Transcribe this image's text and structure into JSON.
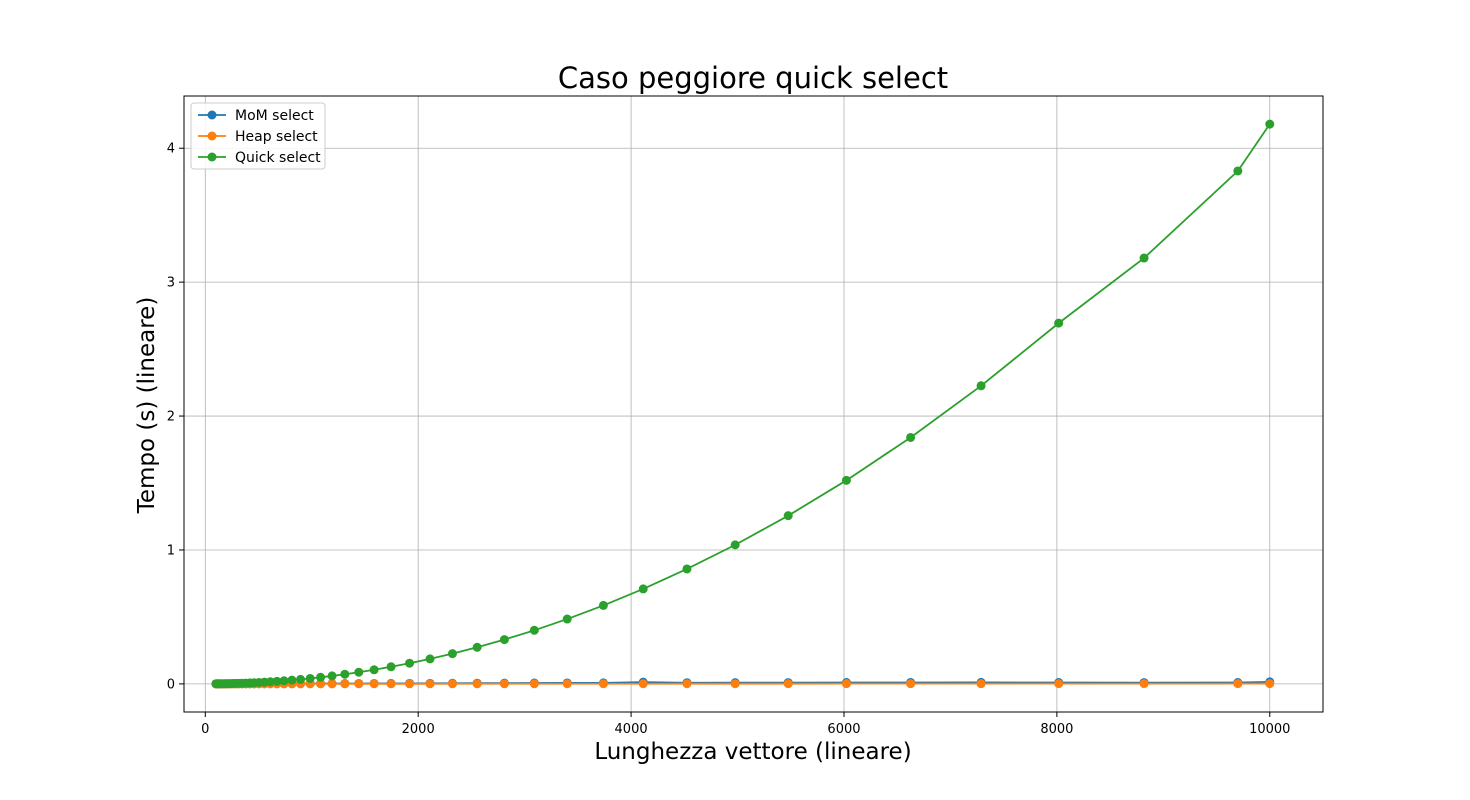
{
  "chart_data": {
    "type": "line",
    "title": "Caso peggiore quick select",
    "xlabel": "Lunghezza vettore (lineare)",
    "ylabel": "Tempo (s) (lineare)",
    "xlim": [
      -200,
      10500
    ],
    "ylim": [
      -0.21,
      4.39
    ],
    "x_ticks": [
      0,
      2000,
      4000,
      6000,
      8000,
      10000
    ],
    "x_tick_labels": [
      "0",
      "2000",
      "4000",
      "6000",
      "8000",
      "10000"
    ],
    "y_ticks": [
      0,
      1,
      2,
      3,
      4
    ],
    "y_tick_labels": [
      "0",
      "1",
      "2",
      "3",
      "4"
    ],
    "grid": true,
    "legend_position": "top-left",
    "x": [
      100,
      110,
      121,
      133,
      146,
      161,
      177,
      195,
      214,
      236,
      259,
      285,
      314,
      345,
      380,
      418,
      459,
      505,
      556,
      611,
      673,
      740,
      814,
      895,
      985,
      1083,
      1191,
      1311,
      1442,
      1586,
      1745,
      1919,
      2111,
      2322,
      2554,
      2810,
      3091,
      3400,
      3740,
      4114,
      4525,
      4978,
      5476,
      6023,
      6626,
      7288,
      8017,
      8819,
      9700,
      10000
    ],
    "series": [
      {
        "name": "MoM select",
        "color": "#1f77b4",
        "values": [
          0.0002,
          0.0002,
          0.0002,
          0.0003,
          0.0003,
          0.0003,
          0.0004,
          0.0004,
          0.0004,
          0.0005,
          0.0005,
          0.0006,
          0.0006,
          0.0007,
          0.0008,
          0.0008,
          0.0009,
          0.001,
          0.0011,
          0.0012,
          0.0013,
          0.0015,
          0.0016,
          0.0018,
          0.002,
          0.0022,
          0.0024,
          0.0026,
          0.0029,
          0.0032,
          0.0035,
          0.0038,
          0.0042,
          0.0046,
          0.0051,
          0.0056,
          0.0062,
          0.007,
          0.0075,
          0.013,
          0.0085,
          0.009,
          0.0095,
          0.01,
          0.0105,
          0.011,
          0.01,
          0.0095,
          0.01,
          0.015
        ]
      },
      {
        "name": "Heap select",
        "color": "#ff7f0e",
        "values": [
          0.0001,
          0.0001,
          0.0001,
          0.0001,
          0.0001,
          0.0001,
          0.0001,
          0.0001,
          0.0001,
          0.0001,
          0.0001,
          0.0001,
          0.0001,
          0.0001,
          0.0002,
          0.0002,
          0.0002,
          0.0002,
          0.0002,
          0.0002,
          0.0002,
          0.0003,
          0.0003,
          0.0003,
          0.0003,
          0.0004,
          0.0004,
          0.0004,
          0.0005,
          0.0005,
          0.0005,
          0.0006,
          0.0006,
          0.0007,
          0.0008,
          0.0008,
          0.0009,
          0.001,
          0.0011,
          0.0012,
          0.0013,
          0.0014,
          0.0015,
          0.0016,
          0.0017,
          0.0018,
          0.0019,
          0.002,
          0.0021,
          0.0022
        ]
      },
      {
        "name": "Quick select",
        "color": "#2ca02c",
        "values": [
          0.0004,
          0.0005,
          0.0006,
          0.0008,
          0.0009,
          0.0011,
          0.0013,
          0.0016,
          0.0019,
          0.0023,
          0.0028,
          0.0034,
          0.0041,
          0.005,
          0.006,
          0.0073,
          0.0088,
          0.0107,
          0.0129,
          0.0156,
          0.0189,
          0.0229,
          0.0277,
          0.0335,
          0.0406,
          0.0491,
          0.0594,
          0.0719,
          0.087,
          0.1053,
          0.1275,
          0.1542,
          0.1866,
          0.2258,
          0.2732,
          0.3307,
          0.4001,
          0.4841,
          0.586,
          0.709,
          0.858,
          1.038,
          1.256,
          1.52,
          1.84,
          2.226,
          2.694,
          3.18,
          3.83,
          4.18
        ]
      }
    ]
  }
}
